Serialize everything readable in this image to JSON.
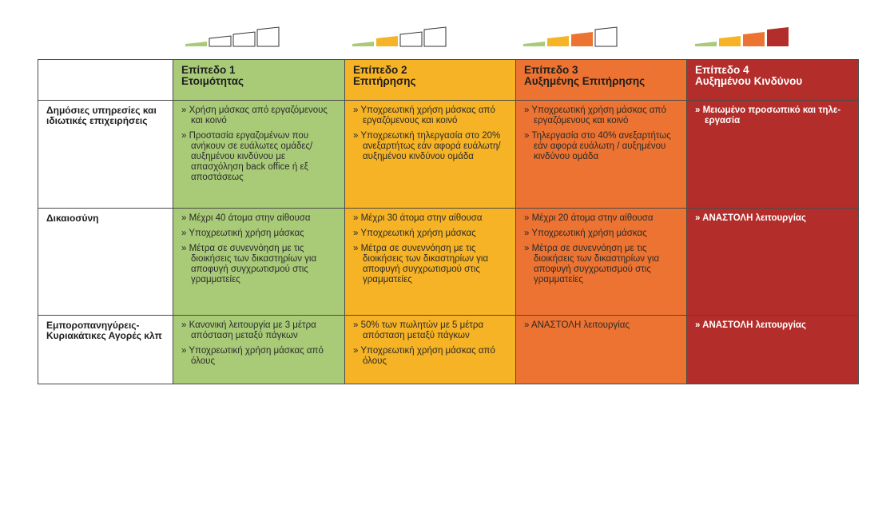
{
  "header": {
    "levels": [
      {
        "level": "Επίπεδο 1",
        "name": "Ετοιμότητας"
      },
      {
        "level": "Επίπεδο 2",
        "name": "Επιτήρησης"
      },
      {
        "level": "Επίπεδο 3",
        "name": "Αυξημένης Επιτήρησης"
      },
      {
        "level": "Επίπεδο 4",
        "name": "Αυξημένου Κινδύνου"
      }
    ]
  },
  "table": {
    "rows": [
      {
        "label": "Δημόσιες υπηρεσίες και ιδιωτικές επιχειρήσεις",
        "cells": [
          [
            "» Χρήση μάσκας από εργαζόμενους και κοινό",
            "» Προστασία εργαζομένων που ανήκουν σε ευάλωτες ομάδες/αυξημένου κινδύνου με απασχόληση back office ή εξ αποστάσεως"
          ],
          [
            "» Υποχρεωτική χρήση μάσκας από εργαζόμενους και κοινό",
            "» Υποχρεωτική τηλεργασία στο 20% ανεξαρτήτως εάν αφορά ευάλωτη/αυξημένου κινδύνου ομάδα"
          ],
          [
            "» Υποχρεωτική χρήση μάσκας από εργαζόμενους και κοινό",
            "» Τηλεργασία στο 40% ανεξαρτήτως εάν αφορά ευάλωτη / αυξημένου κινδύνου ομάδα"
          ],
          [
            "» Μειωμένο προσωπικό και τηλε-εργασία"
          ]
        ]
      },
      {
        "label": "Δικαιοσύνη",
        "cells": [
          [
            "» Μέχρι 40 άτομα στην αίθουσα",
            "» Υποχρεωτική χρήση μάσκας",
            "» Μέτρα σε συνεννόηση με τις διοικήσεις των δικαστηρίων για αποφυγή συγχρωτισμού στις γραμματείες"
          ],
          [
            "» Μέχρι 30 άτομα στην αίθουσα",
            "» Υποχρεωτική χρήση μάσκας",
            "» Μέτρα σε συνεννόηση με τις διοικήσεις των δικαστηρίων για αποφυγή συγχρωτισμού στις γραμματείες"
          ],
          [
            "» Μέχρι 20 άτομα στην αίθουσα",
            "» Υποχρεωτική χρήση μάσκας",
            "» Μέτρα σε συνεννόηση με τις διοικήσεις των δικαστηρίων για αποφυγή συγχρωτισμού στις γραμματείες"
          ],
          [
            "» ΑΝΑΣΤΟΛΗ λειτουργίας"
          ]
        ]
      },
      {
        "label": "Εμποροπανηγύρεις-Κυριακάτικες Αγορές κλπ",
        "cells": [
          [
            "» Κανονική λειτουργία με 3 μέτρα απόσταση μεταξύ πάγκων",
            "» Υποχρεωτική χρήση μάσκας από όλους"
          ],
          [
            "» 50% των πωλητών με 5 μέτρα απόσταση μεταξύ πάγκων",
            "» Υποχρεωτική χρήση μάσκας από όλους"
          ],
          [
            "» ΑΝΑΣΤΟΛΗ λειτουργίας"
          ],
          [
            "» ΑΝΑΣΤΟΛΗ λειτουργίας"
          ]
        ]
      }
    ]
  }
}
